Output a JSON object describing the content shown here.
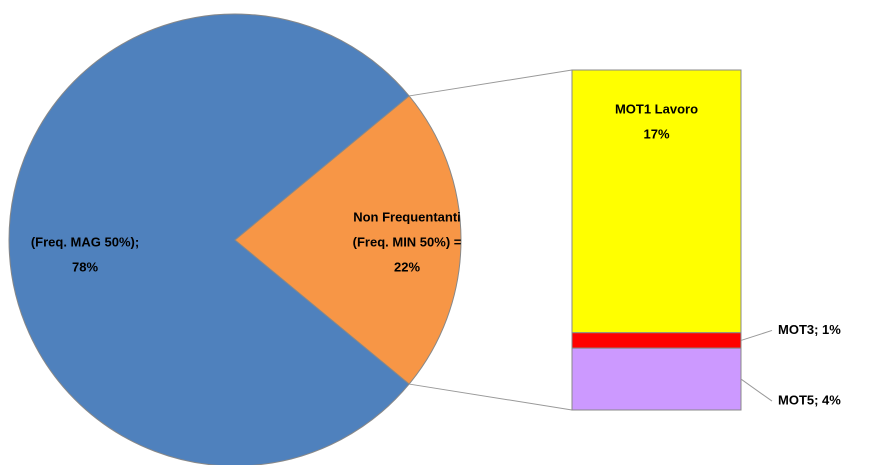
{
  "chart_data": {
    "type": "pie-of-bar",
    "pie": {
      "values": [
        78,
        22
      ],
      "colors": [
        "#4f81bd",
        "#f79646"
      ],
      "value_labels": [
        [
          "(Freq. MAG 50%);",
          "78%"
        ],
        [
          "Non Frequentanti",
          "(Freq. MIN 50%) =",
          "22%"
        ]
      ]
    },
    "bar": {
      "values": [
        17,
        1,
        4
      ],
      "colors": [
        "#ffff00",
        "#ff0000",
        "#cc99ff"
      ],
      "value_labels": [
        [
          "MOT1 Lavoro",
          "17%"
        ],
        [
          "MOT3; 1%"
        ],
        [
          "MOT5; 4%"
        ]
      ]
    }
  }
}
